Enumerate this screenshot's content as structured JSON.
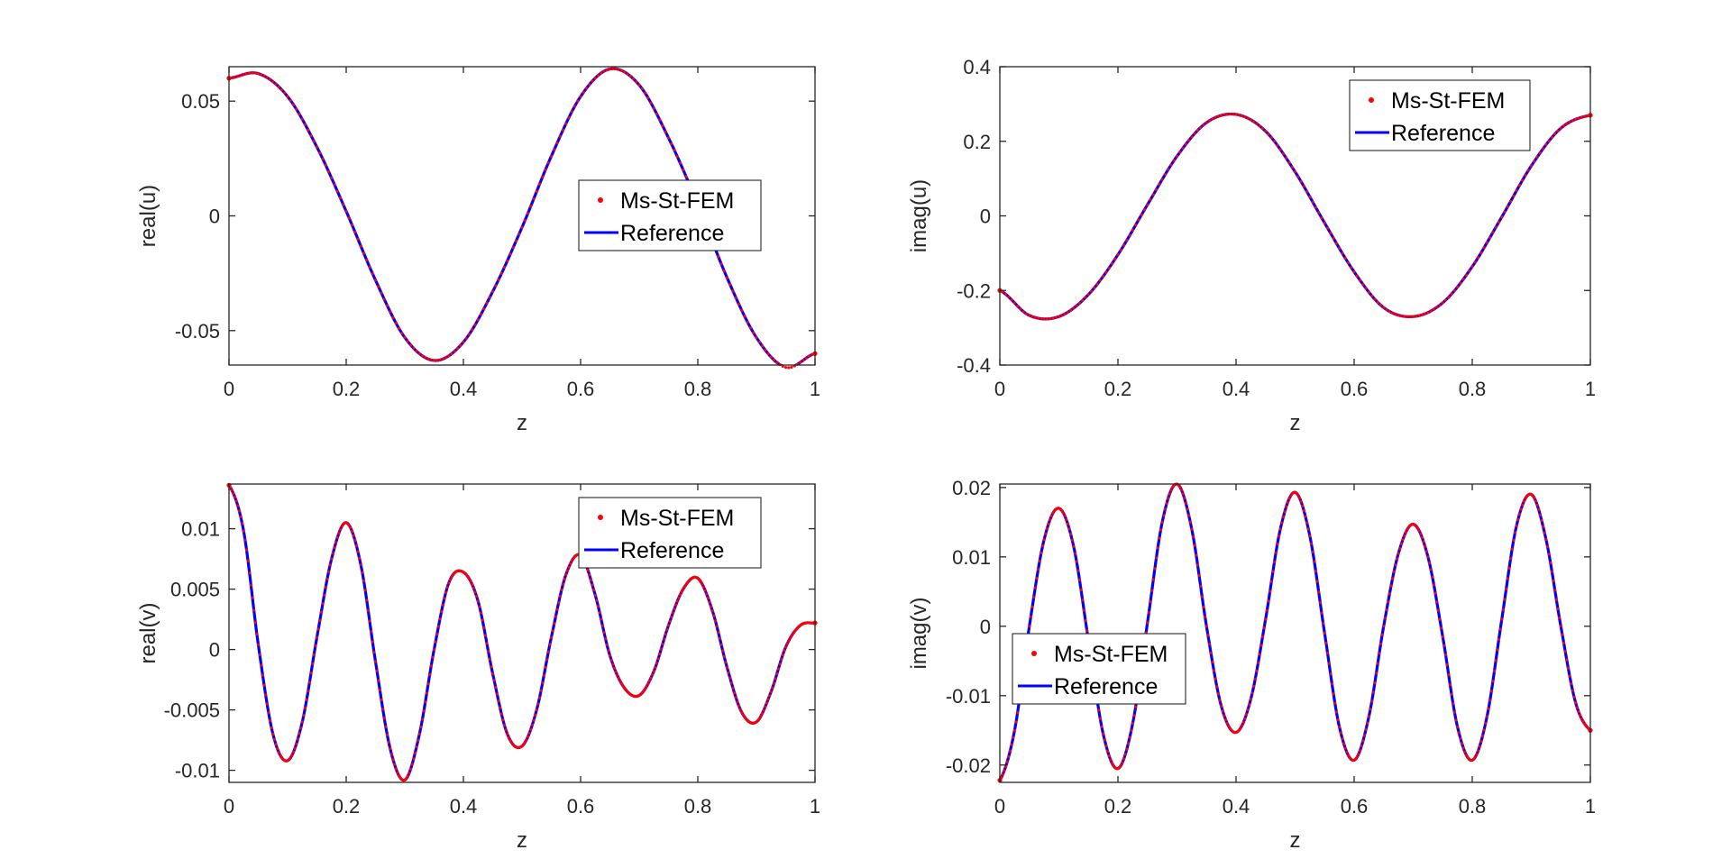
{
  "colors": {
    "reference": "#0000ff",
    "ms_st_fem": "#ff0000",
    "axis": "#262626"
  },
  "chart_data": [
    {
      "type": "line",
      "xlabel": "z",
      "ylabel": "real(u)",
      "xlim": [
        0,
        1
      ],
      "ylim": [
        -0.065,
        0.065
      ],
      "xticks": [
        0,
        0.2,
        0.4,
        0.6,
        0.8,
        1
      ],
      "xtick_labels": [
        "0",
        "0.2",
        "0.4",
        "0.6",
        "0.8",
        "1"
      ],
      "yticks": [
        -0.05,
        0,
        0.05
      ],
      "ytick_labels": [
        "-0.05",
        "0",
        "0.05"
      ],
      "legend": {
        "entries": [
          "Ms-St-FEM",
          "Reference"
        ],
        "position": "center-right"
      },
      "grid": false,
      "series": [
        {
          "name": "Ms-St-FEM",
          "style": "markers",
          "x": [
            0,
            0.05,
            0.1,
            0.15,
            0.2,
            0.25,
            0.3,
            0.35,
            0.4,
            0.45,
            0.5,
            0.55,
            0.6,
            0.65,
            0.7,
            0.75,
            0.8,
            0.85,
            0.9,
            0.95,
            1
          ],
          "y": [
            0.06,
            0.062,
            0.052,
            0.03,
            0.002,
            -0.028,
            -0.053,
            -0.063,
            -0.055,
            -0.033,
            -0.005,
            0.026,
            0.052,
            0.064,
            0.057,
            0.034,
            0.005,
            -0.027,
            -0.053,
            -0.066,
            -0.06
          ]
        },
        {
          "name": "Reference",
          "style": "line",
          "x": [
            0,
            0.05,
            0.1,
            0.15,
            0.2,
            0.25,
            0.3,
            0.35,
            0.4,
            0.45,
            0.5,
            0.55,
            0.6,
            0.65,
            0.7,
            0.75,
            0.8,
            0.85,
            0.9,
            0.95,
            1
          ],
          "y": [
            0.06,
            0.062,
            0.052,
            0.03,
            0.002,
            -0.028,
            -0.053,
            -0.063,
            -0.055,
            -0.033,
            -0.005,
            0.026,
            0.052,
            0.064,
            0.057,
            0.034,
            0.005,
            -0.027,
            -0.053,
            -0.066,
            -0.06
          ]
        }
      ]
    },
    {
      "type": "line",
      "xlabel": "z",
      "ylabel": "imag(u)",
      "xlim": [
        0,
        1
      ],
      "ylim": [
        -0.4,
        0.4
      ],
      "xticks": [
        0,
        0.2,
        0.4,
        0.6,
        0.8,
        1
      ],
      "xtick_labels": [
        "0",
        "0.2",
        "0.4",
        "0.6",
        "0.8",
        "1"
      ],
      "yticks": [
        -0.4,
        -0.2,
        0,
        0.2,
        0.4
      ],
      "ytick_labels": [
        "-0.4",
        "-0.2",
        "0",
        "0.2",
        "0.4"
      ],
      "legend": {
        "entries": [
          "Ms-St-FEM",
          "Reference"
        ],
        "position": "top-right"
      },
      "grid": false,
      "series": [
        {
          "name": "Ms-St-FEM",
          "style": "markers",
          "x": [
            0,
            0.05,
            0.1,
            0.15,
            0.2,
            0.25,
            0.3,
            0.35,
            0.4,
            0.45,
            0.5,
            0.55,
            0.6,
            0.65,
            0.7,
            0.75,
            0.8,
            0.85,
            0.9,
            0.95,
            1
          ],
          "y": [
            -0.2,
            -0.267,
            -0.27,
            -0.211,
            -0.104,
            0.03,
            0.16,
            0.25,
            0.272,
            0.227,
            0.118,
            -0.019,
            -0.15,
            -0.246,
            -0.27,
            -0.233,
            -0.136,
            -0.003,
            0.134,
            0.235,
            0.27
          ]
        },
        {
          "name": "Reference",
          "style": "line",
          "x": [
            0,
            0.05,
            0.1,
            0.15,
            0.2,
            0.25,
            0.3,
            0.35,
            0.4,
            0.45,
            0.5,
            0.55,
            0.6,
            0.65,
            0.7,
            0.75,
            0.8,
            0.85,
            0.9,
            0.95,
            1
          ],
          "y": [
            -0.2,
            -0.267,
            -0.27,
            -0.211,
            -0.104,
            0.03,
            0.16,
            0.25,
            0.272,
            0.227,
            0.118,
            -0.019,
            -0.15,
            -0.246,
            -0.27,
            -0.233,
            -0.136,
            -0.003,
            0.134,
            0.235,
            0.27
          ]
        }
      ]
    },
    {
      "type": "line",
      "xlabel": "z",
      "ylabel": "real(v)",
      "xlim": [
        0,
        1
      ],
      "ylim": [
        -0.011,
        0.0137
      ],
      "xticks": [
        0,
        0.2,
        0.4,
        0.6,
        0.8,
        1
      ],
      "xtick_labels": [
        "0",
        "0.2",
        "0.4",
        "0.6",
        "0.8",
        "1"
      ],
      "yticks": [
        -0.01,
        -0.005,
        0,
        0.005,
        0.01
      ],
      "ytick_labels": [
        "-0.01",
        "-0.005",
        "0",
        "0.005",
        "0.01"
      ],
      "legend": {
        "entries": [
          "Ms-St-FEM",
          "Reference"
        ],
        "position": "top-right"
      },
      "grid": false,
      "series": [
        {
          "name": "Ms-St-FEM",
          "style": "markers",
          "x": [
            0,
            0.025,
            0.05,
            0.075,
            0.1,
            0.125,
            0.15,
            0.175,
            0.2,
            0.225,
            0.25,
            0.275,
            0.3,
            0.325,
            0.35,
            0.375,
            0.4,
            0.425,
            0.45,
            0.475,
            0.5,
            0.525,
            0.55,
            0.575,
            0.6,
            0.625,
            0.65,
            0.675,
            0.7,
            0.725,
            0.75,
            0.775,
            0.8,
            0.825,
            0.85,
            0.875,
            0.9,
            0.925,
            0.95,
            0.975,
            1
          ],
          "y": [
            0.0136,
            0.0098,
            0.0004,
            -0.007,
            -0.0092,
            -0.006,
            0.001,
            0.0075,
            0.0105,
            0.007,
            -0.001,
            -0.0082,
            -0.0108,
            -0.007,
            0.0,
            0.0055,
            0.0064,
            0.004,
            -0.002,
            -0.007,
            -0.008,
            -0.005,
            0.001,
            0.0062,
            0.0078,
            0.0045,
            -0.0005,
            -0.0032,
            -0.0038,
            -0.0018,
            0.002,
            0.005,
            0.0059,
            0.0032,
            -0.0015,
            -0.0052,
            -0.006,
            -0.0035,
            0.0002,
            0.002,
            0.0022
          ]
        },
        {
          "name": "Reference",
          "style": "line",
          "x": [
            0,
            0.025,
            0.05,
            0.075,
            0.1,
            0.125,
            0.15,
            0.175,
            0.2,
            0.225,
            0.25,
            0.275,
            0.3,
            0.325,
            0.35,
            0.375,
            0.4,
            0.425,
            0.45,
            0.475,
            0.5,
            0.525,
            0.55,
            0.575,
            0.6,
            0.625,
            0.65,
            0.675,
            0.7,
            0.725,
            0.75,
            0.775,
            0.8,
            0.825,
            0.85,
            0.875,
            0.9,
            0.925,
            0.95,
            0.975,
            1
          ],
          "y": [
            0.0136,
            0.0098,
            0.0004,
            -0.007,
            -0.0092,
            -0.006,
            0.001,
            0.0075,
            0.0105,
            0.007,
            -0.001,
            -0.0082,
            -0.0108,
            -0.007,
            0.0,
            0.0055,
            0.0064,
            0.004,
            -0.002,
            -0.007,
            -0.008,
            -0.005,
            0.001,
            0.0062,
            0.0078,
            0.0045,
            -0.0005,
            -0.0032,
            -0.0038,
            -0.0018,
            0.002,
            0.005,
            0.0059,
            0.0032,
            -0.0015,
            -0.0052,
            -0.006,
            -0.0035,
            0.0002,
            0.002,
            0.0022
          ]
        }
      ]
    },
    {
      "type": "line",
      "xlabel": "z",
      "ylabel": "imag(v)",
      "xlim": [
        0,
        1
      ],
      "ylim": [
        -0.0225,
        0.0205
      ],
      "xticks": [
        0,
        0.2,
        0.4,
        0.6,
        0.8,
        1
      ],
      "xtick_labels": [
        "0",
        "0.2",
        "0.4",
        "0.6",
        "0.8",
        "1"
      ],
      "yticks": [
        -0.02,
        -0.01,
        0,
        0.01,
        0.02
      ],
      "ytick_labels": [
        "-0.02",
        "-0.01",
        "0",
        "0.01",
        "0.02"
      ],
      "legend": {
        "entries": [
          "Ms-St-FEM",
          "Reference"
        ],
        "position": "center-left"
      },
      "grid": false,
      "series": [
        {
          "name": "Ms-St-FEM",
          "style": "markers",
          "x": [
            0,
            0.025,
            0.05,
            0.075,
            0.1,
            0.125,
            0.15,
            0.175,
            0.2,
            0.225,
            0.25,
            0.275,
            0.3,
            0.325,
            0.35,
            0.375,
            0.4,
            0.425,
            0.45,
            0.475,
            0.5,
            0.525,
            0.55,
            0.575,
            0.6,
            0.625,
            0.65,
            0.675,
            0.7,
            0.725,
            0.75,
            0.775,
            0.8,
            0.825,
            0.85,
            0.875,
            0.9,
            0.925,
            0.95,
            0.975,
            1
          ],
          "y": [
            -0.0222,
            -0.015,
            0.0,
            0.0125,
            0.017,
            0.0115,
            -0.002,
            -0.0155,
            -0.0205,
            -0.014,
            0.0005,
            0.015,
            0.0205,
            0.014,
            0.0,
            -0.0115,
            -0.0153,
            -0.0105,
            0.001,
            0.014,
            0.0193,
            0.013,
            -0.001,
            -0.0145,
            -0.0193,
            -0.013,
            0.0,
            0.0105,
            0.0147,
            0.01,
            -0.0015,
            -0.0145,
            -0.0193,
            -0.013,
            0.001,
            0.0145,
            0.019,
            0.0125,
            0.0,
            -0.011,
            -0.015
          ]
        },
        {
          "name": "Reference",
          "style": "line",
          "x": [
            0,
            0.025,
            0.05,
            0.075,
            0.1,
            0.125,
            0.15,
            0.175,
            0.2,
            0.225,
            0.25,
            0.275,
            0.3,
            0.325,
            0.35,
            0.375,
            0.4,
            0.425,
            0.45,
            0.475,
            0.5,
            0.525,
            0.55,
            0.575,
            0.6,
            0.625,
            0.65,
            0.675,
            0.7,
            0.725,
            0.75,
            0.775,
            0.8,
            0.825,
            0.85,
            0.875,
            0.9,
            0.925,
            0.95,
            0.975,
            1
          ],
          "y": [
            -0.0222,
            -0.015,
            0.0,
            0.0125,
            0.017,
            0.0115,
            -0.002,
            -0.0155,
            -0.0205,
            -0.014,
            0.0005,
            0.015,
            0.0205,
            0.014,
            0.0,
            -0.0115,
            -0.0153,
            -0.0105,
            0.001,
            0.014,
            0.0193,
            0.013,
            -0.001,
            -0.0145,
            -0.0193,
            -0.013,
            0.0,
            0.0105,
            0.0147,
            0.01,
            -0.0015,
            -0.0145,
            -0.0193,
            -0.013,
            0.001,
            0.0145,
            0.019,
            0.0125,
            0.0,
            -0.011,
            -0.015
          ]
        }
      ]
    }
  ]
}
